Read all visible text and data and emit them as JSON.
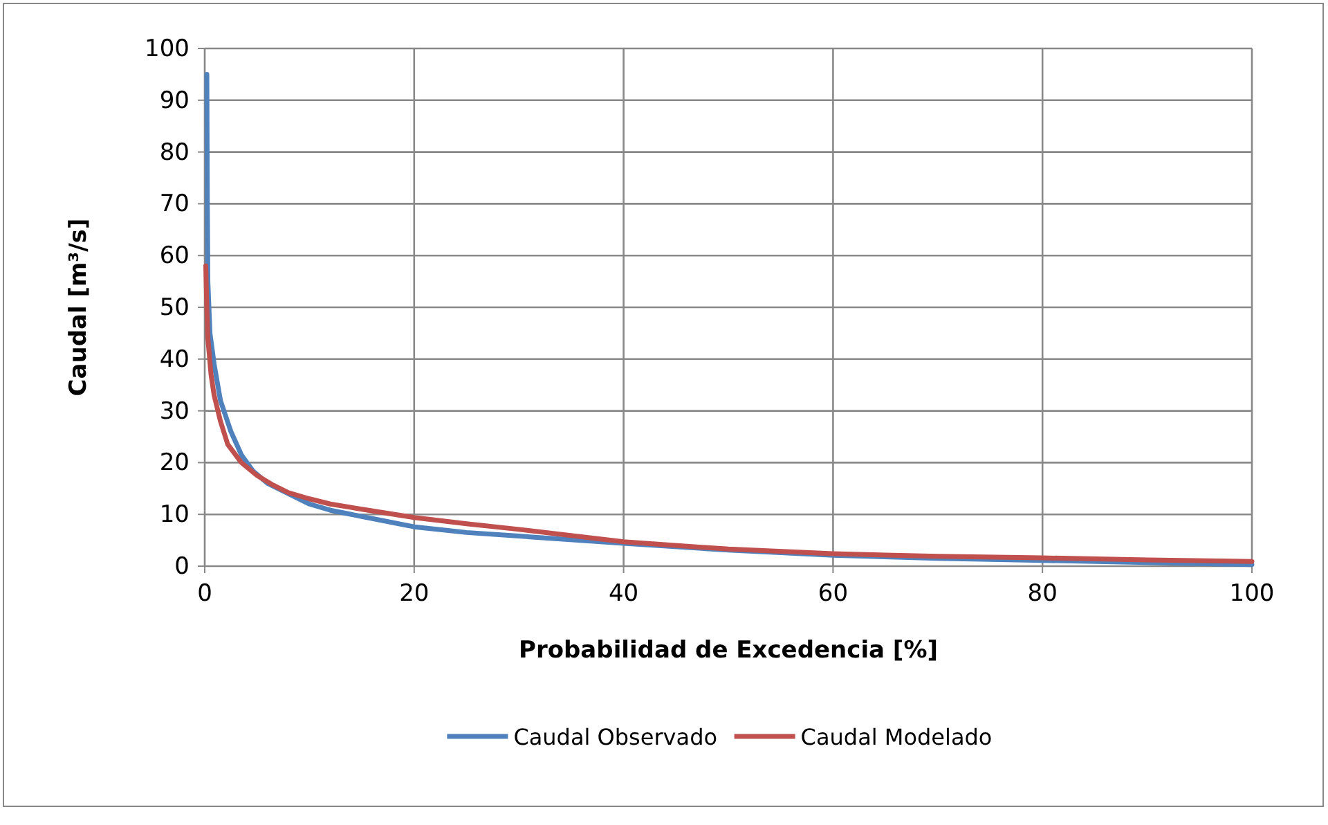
{
  "chart_data": {
    "type": "line",
    "xlabel": "Probabilidad de Excedencia [%]",
    "ylabel": "Caudal [m³/s]",
    "xlim": [
      0,
      100
    ],
    "xticks": [
      0,
      20,
      40,
      60,
      80,
      100
    ],
    "ylim": [
      0,
      100
    ],
    "yticks": [
      0,
      10,
      20,
      30,
      40,
      50,
      60,
      70,
      80,
      90,
      100
    ],
    "grid": true,
    "legend": "bottom",
    "marker": "none",
    "line_style": "solid",
    "series": [
      {
        "name": "Caudal Observado",
        "color": "#4f81bd",
        "x": [
          0.2,
          0.25,
          0.3,
          0.5,
          0.9,
          1.5,
          2.5,
          3.5,
          4.6,
          6,
          8,
          10,
          12,
          15,
          20,
          25,
          30,
          40,
          50,
          60,
          70,
          80,
          90,
          100
        ],
        "values": [
          95,
          70,
          55,
          45,
          39,
          32,
          26,
          21.5,
          18.4,
          16,
          14,
          12,
          10.8,
          9.6,
          7.6,
          6.5,
          5.8,
          4.4,
          3.1,
          2.1,
          1.5,
          1.1,
          0.7,
          0.3
        ]
      },
      {
        "name": "Caudal Modelado",
        "color": "#c0504d",
        "x": [
          0.1,
          0.2,
          0.3,
          0.6,
          0.9,
          1.5,
          2.2,
          3.5,
          5,
          6.4,
          8,
          10,
          12,
          15,
          20,
          25,
          30,
          40,
          50,
          60,
          70,
          80,
          90,
          100
        ],
        "values": [
          58,
          50,
          44,
          37,
          33,
          28,
          23.5,
          20,
          17.5,
          15.8,
          14.2,
          13,
          12,
          11,
          9.4,
          8.2,
          7.1,
          4.7,
          3.3,
          2.4,
          1.9,
          1.6,
          1.2,
          0.9
        ]
      }
    ]
  }
}
